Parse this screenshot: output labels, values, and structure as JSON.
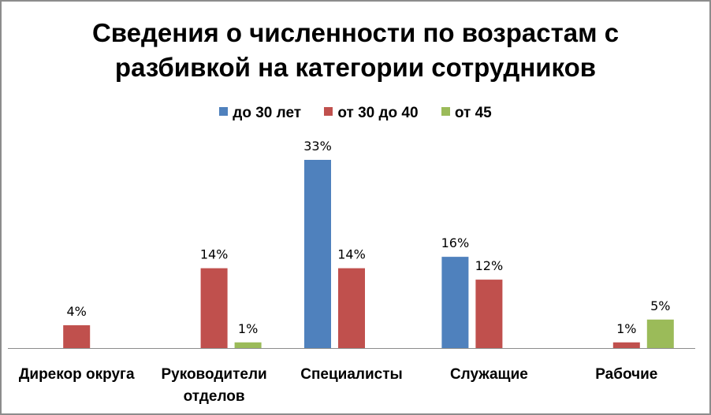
{
  "chart_data": {
    "type": "bar",
    "title": "Сведения о численности по возрастам  с\nразбивкой на категории сотрудников",
    "categories": [
      "Дирекор округа",
      "Руководители отделов",
      "Специалисты",
      "Служащие",
      "Рабочие"
    ],
    "series": [
      {
        "name": "до 30 лет",
        "color": "#4f81bd",
        "values": [
          null,
          null,
          33,
          16,
          null
        ],
        "labels": [
          null,
          null,
          "33%",
          "16%",
          null
        ]
      },
      {
        "name": "от 30 до 40",
        "color": "#c0504d",
        "values": [
          4,
          14,
          14,
          12,
          1
        ],
        "labels": [
          "4%",
          "14%",
          "14%",
          "12%",
          "1%"
        ]
      },
      {
        "name": "от 45",
        "color": "#9bbb59",
        "values": [
          null,
          1,
          null,
          null,
          5
        ],
        "labels": [
          null,
          "1%",
          null,
          null,
          "5%"
        ]
      }
    ],
    "ylim": [
      0,
      33
    ],
    "grid": false,
    "legend_position": "top"
  }
}
